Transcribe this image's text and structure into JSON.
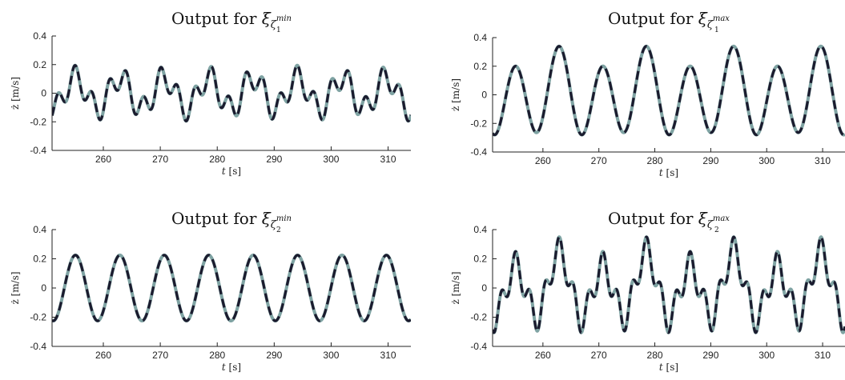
{
  "chart_data": [
    {
      "type": "line",
      "title_prefix": "Output for ",
      "title_symbol": "ξ",
      "title_subscript": "ζ",
      "title_subsub": "1",
      "title_sup": "min",
      "xlabel_var": "t",
      "xlabel_unit": " [s]",
      "ylabel": "ż [m/s]",
      "xlim": [
        251,
        314
      ],
      "ylim": [
        -0.4,
        0.4
      ],
      "xticks": [
        "260",
        "270",
        "280",
        "290",
        "300",
        "310"
      ],
      "yticks": [
        "0.4",
        "0.2",
        "0",
        "-0.2",
        "-0.4"
      ],
      "signal": {
        "components": [
          {
            "amp": 0.11,
            "period": 7.8,
            "phase": 3.42
          },
          {
            "amp": 0.085,
            "period": 3.0,
            "phase": 1.5
          }
        ]
      },
      "series": [
        {
          "color": "#7fa3a3",
          "style": "solid"
        },
        {
          "color": "#1b1b2e",
          "style": "dashed"
        }
      ]
    },
    {
      "type": "line",
      "title_prefix": "Output for ",
      "title_symbol": "ξ",
      "title_subscript": "ζ",
      "title_subsub": "1",
      "title_sup": "max",
      "xlabel_var": "t",
      "xlabel_unit": " [s]",
      "ylabel": "ż [m/s]",
      "xlim": [
        251,
        314
      ],
      "ylim": [
        -0.4,
        0.4
      ],
      "xticks": [
        "260",
        "270",
        "280",
        "290",
        "300",
        "310"
      ],
      "yticks": [
        "0.4",
        "0.2",
        "0",
        "-0.2",
        "-0.4"
      ],
      "signal": {
        "components": [
          {
            "amp": 0.27,
            "period": 7.8,
            "phase": 3.42
          },
          {
            "amp": 0.07,
            "period": 15.6,
            "phase": 2.61
          }
        ]
      },
      "series": [
        {
          "color": "#7fa3a3",
          "style": "solid"
        },
        {
          "color": "#1b1b2e",
          "style": "dashed"
        }
      ]
    },
    {
      "type": "line",
      "title_prefix": "Output for ",
      "title_symbol": "ξ",
      "title_subscript": "ζ",
      "title_subsub": "2",
      "title_sup": "min",
      "xlabel_var": "t",
      "xlabel_unit": " [s]",
      "ylabel": "ż [m/s]",
      "xlim": [
        251,
        314
      ],
      "ylim": [
        -0.4,
        0.4
      ],
      "xticks": [
        "260",
        "270",
        "280",
        "290",
        "300",
        "310"
      ],
      "yticks": [
        "0.4",
        "0.2",
        "0",
        "-0.2",
        "-0.4"
      ],
      "signal": {
        "components": [
          {
            "amp": 0.225,
            "period": 7.8,
            "phase": 3.42
          }
        ]
      },
      "series": [
        {
          "color": "#7fa3a3",
          "style": "solid"
        },
        {
          "color": "#1b1b2e",
          "style": "dashed"
        }
      ]
    },
    {
      "type": "line",
      "title_prefix": "Output for ",
      "title_symbol": "ξ",
      "title_subscript": "ζ",
      "title_subsub": "2",
      "title_sup": "max",
      "xlabel_var": "t",
      "xlabel_unit": " [s]",
      "ylabel": "ż [m/s]",
      "xlim": [
        251,
        314
      ],
      "ylim": [
        -0.4,
        0.4
      ],
      "xticks": [
        "260",
        "270",
        "280",
        "290",
        "300",
        "310"
      ],
      "yticks": [
        "0.4",
        "0.2",
        "0",
        "-0.2",
        "-0.4"
      ],
      "signal": {
        "components": [
          {
            "amp": 0.2,
            "period": 7.8,
            "phase": 3.42
          },
          {
            "amp": 0.1,
            "period": 2.6,
            "phase": 0.8
          },
          {
            "amp": 0.05,
            "period": 15.6,
            "phase": 2.6
          }
        ]
      },
      "series": [
        {
          "color": "#7fa3a3",
          "style": "solid"
        },
        {
          "color": "#1b1b2e",
          "style": "dashed"
        }
      ]
    }
  ]
}
